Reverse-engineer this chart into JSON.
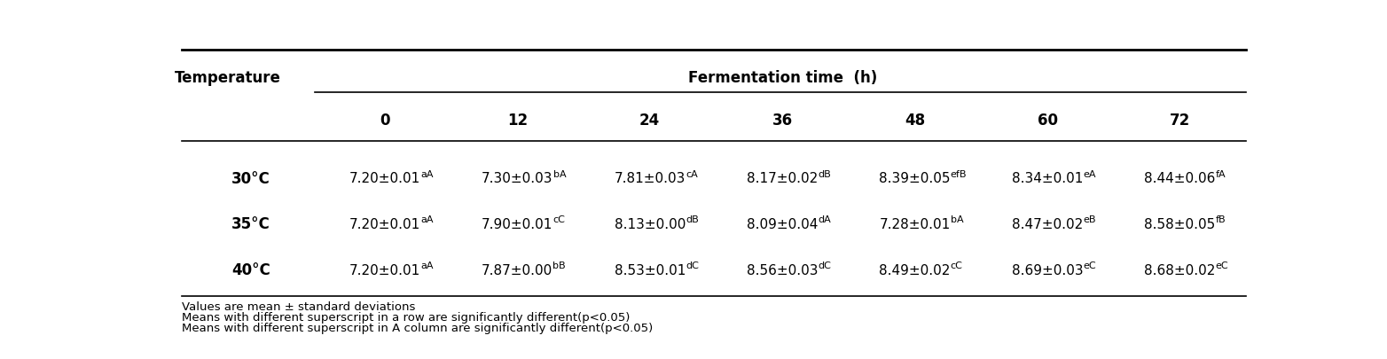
{
  "title": "Fermentation time  (h)",
  "col_header": "Temperature",
  "time_cols": [
    "0",
    "12",
    "24",
    "36",
    "48",
    "60",
    "72"
  ],
  "rows": [
    {
      "label": "30°C",
      "values": [
        {
          "main": "7.20±0.01",
          "sup": "aA"
        },
        {
          "main": "7.30±0.03",
          "sup": "bA"
        },
        {
          "main": "7.81±0.03",
          "sup": "cA"
        },
        {
          "main": "8.17±0.02",
          "sup": "dB"
        },
        {
          "main": "8.39±0.05",
          "sup": "efB"
        },
        {
          "main": "8.34±0.01",
          "sup": "eA"
        },
        {
          "main": "8.44±0.06",
          "sup": "fA"
        }
      ]
    },
    {
      "label": "35°C",
      "values": [
        {
          "main": "7.20±0.01",
          "sup": "aA"
        },
        {
          "main": "7.90±0.01",
          "sup": "cC"
        },
        {
          "main": "8.13±0.00",
          "sup": "dB"
        },
        {
          "main": "8.09±0.04",
          "sup": "dA"
        },
        {
          "main": "7.28±0.01",
          "sup": "bA"
        },
        {
          "main": "8.47±0.02",
          "sup": "eB"
        },
        {
          "main": "8.58±0.05",
          "sup": "fB"
        }
      ]
    },
    {
      "label": "40°C",
      "values": [
        {
          "main": "7.20±0.01",
          "sup": "aA"
        },
        {
          "main": "7.87±0.00",
          "sup": "bB"
        },
        {
          "main": "8.53±0.01",
          "sup": "dC"
        },
        {
          "main": "8.56±0.03",
          "sup": "dC"
        },
        {
          "main": "8.49±0.02",
          "sup": "cC"
        },
        {
          "main": "8.69±0.03",
          "sup": "eC"
        },
        {
          "main": "8.68±0.02",
          "sup": "eC"
        }
      ]
    }
  ],
  "footnotes": [
    "Values are mean ± standard deviations",
    "Means with different superscript in a row are significantly different(p<0.05)",
    "Means with different superscript in A column are significantly different(p<0.05)"
  ],
  "bg_color": "#ffffff",
  "text_color": "#000000",
  "font_size_title": 12,
  "font_size_header": 12,
  "font_size_cell": 11,
  "font_size_sup": 8,
  "font_size_footnote": 10
}
